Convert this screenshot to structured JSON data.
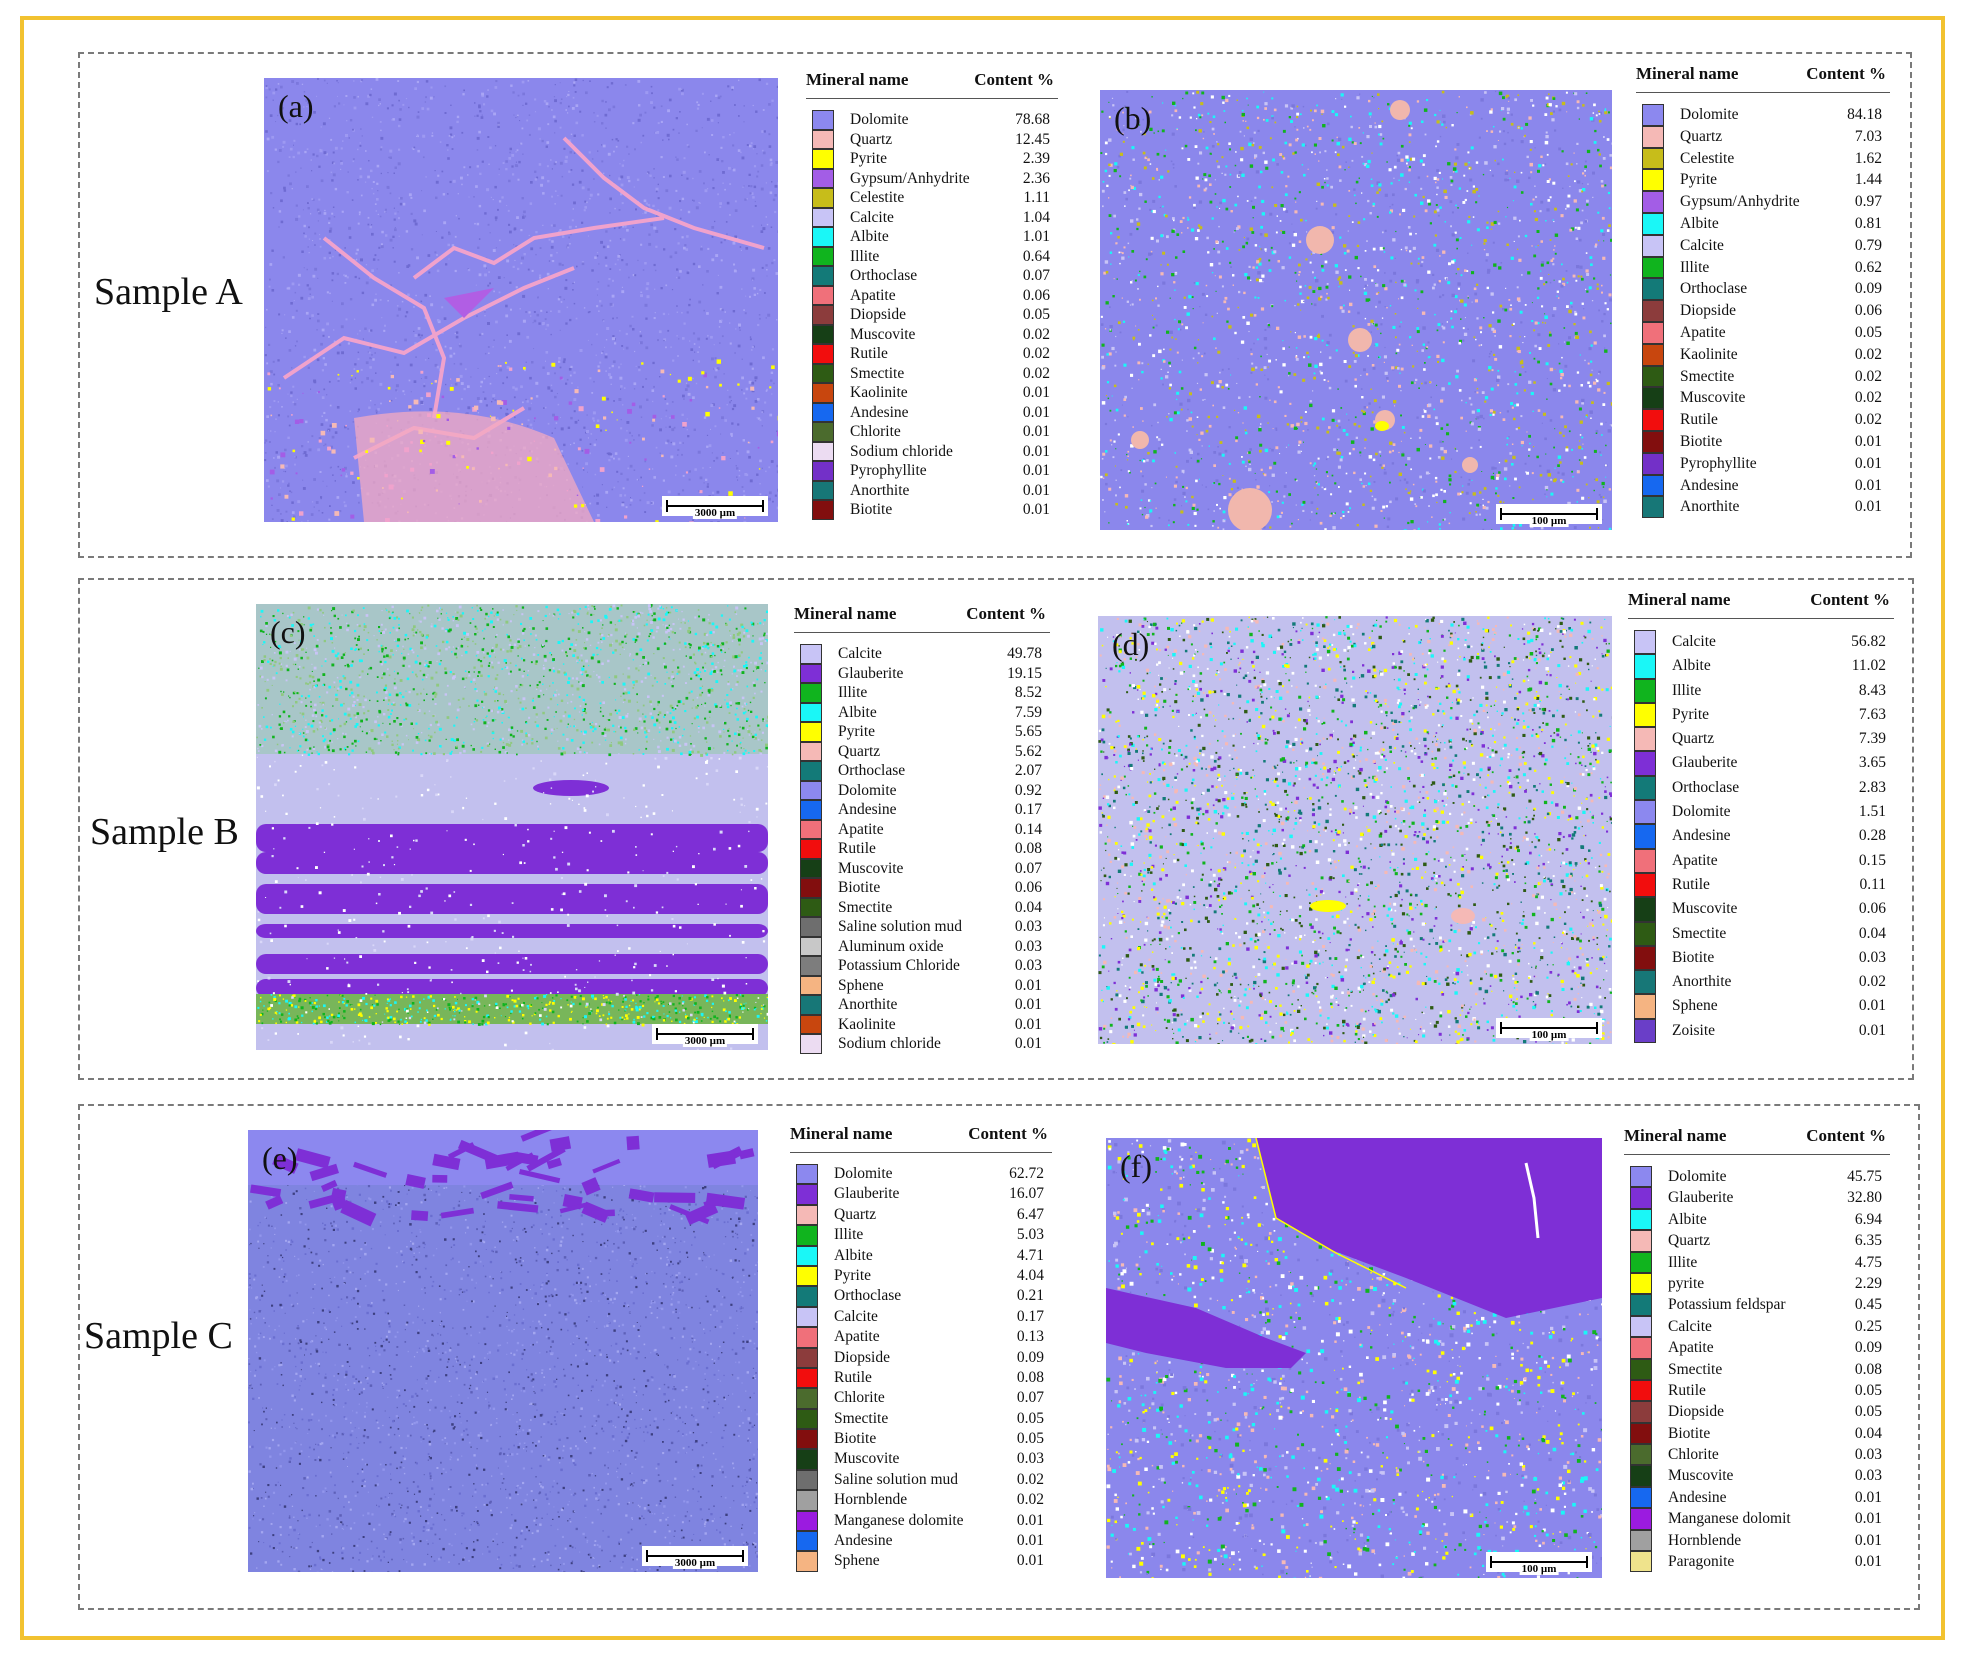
{
  "figure": {
    "border_color": "#f2c230",
    "panels": [
      {
        "letter": "(a)",
        "sample": "Sample A",
        "scale": "3000 µm",
        "style": "A1",
        "base": "#8b87ec",
        "header": {
          "name": "Mineral name",
          "content": "Content %"
        },
        "minerals": [
          {
            "name": "Dolomite",
            "value": "78.68",
            "color": "#8c88ef"
          },
          {
            "name": "Quartz",
            "value": "12.45",
            "color": "#f5b9b6"
          },
          {
            "name": "Pyrite",
            "value": "2.39",
            "color": "#ffff00"
          },
          {
            "name": "Gypsum/Anhydrite",
            "value": "2.36",
            "color": "#a35de6"
          },
          {
            "name": "Celestite",
            "value": "1.11",
            "color": "#c7bd1a"
          },
          {
            "name": "Calcite",
            "value": "1.04",
            "color": "#c8c4f6"
          },
          {
            "name": "Albite",
            "value": "1.01",
            "color": "#1af7f7"
          },
          {
            "name": "Illite",
            "value": "0.64",
            "color": "#10b41e"
          },
          {
            "name": "Orthoclase",
            "value": "0.07",
            "color": "#137a78"
          },
          {
            "name": "Apatite",
            "value": "0.06",
            "color": "#f0707a"
          },
          {
            "name": "Diopside",
            "value": "0.05",
            "color": "#8c3c3c"
          },
          {
            "name": "Muscovite",
            "value": "0.02",
            "color": "#163f16"
          },
          {
            "name": "Rutile",
            "value": "0.02",
            "color": "#f20d0d"
          },
          {
            "name": "Smectite",
            "value": "0.02",
            "color": "#2e5b14"
          },
          {
            "name": "Kaolinite",
            "value": "0.01",
            "color": "#c8460e"
          },
          {
            "name": "Andesine",
            "value": "0.01",
            "color": "#1668f0"
          },
          {
            "name": "Chlorite",
            "value": "0.01",
            "color": "#4b6b2d"
          },
          {
            "name": "Sodium chloride",
            "value": "0.01",
            "color": "#ecdcf2"
          },
          {
            "name": "Pyrophyllite",
            "value": "0.01",
            "color": "#7330c8"
          },
          {
            "name": "Anorthite",
            "value": "0.01",
            "color": "#177777"
          },
          {
            "name": "Biotite",
            "value": "0.01",
            "color": "#820e0e"
          }
        ]
      },
      {
        "letter": "(b)",
        "sample": "",
        "scale": "100 µm",
        "style": "A2",
        "base": "#8b87ec",
        "header": {
          "name": "Mineral name",
          "content": "Content %"
        },
        "minerals": [
          {
            "name": "Dolomite",
            "value": "84.18",
            "color": "#8c88ef"
          },
          {
            "name": "Quartz",
            "value": "7.03",
            "color": "#f5b9b6"
          },
          {
            "name": "Celestite",
            "value": "1.62",
            "color": "#c7bd1a"
          },
          {
            "name": "Pyrite",
            "value": "1.44",
            "color": "#ffff00"
          },
          {
            "name": "Gypsum/Anhydrite",
            "value": "0.97",
            "color": "#a35de6"
          },
          {
            "name": "Albite",
            "value": "0.81",
            "color": "#1af7f7"
          },
          {
            "name": "Calcite",
            "value": "0.79",
            "color": "#c8c4f6"
          },
          {
            "name": "Illite",
            "value": "0.62",
            "color": "#10b41e"
          },
          {
            "name": "Orthoclase",
            "value": "0.09",
            "color": "#137a78"
          },
          {
            "name": "Diopside",
            "value": "0.06",
            "color": "#8c3c3c"
          },
          {
            "name": "Apatite",
            "value": "0.05",
            "color": "#f0707a"
          },
          {
            "name": "Kaolinite",
            "value": "0.02",
            "color": "#c8460e"
          },
          {
            "name": "Smectite",
            "value": "0.02",
            "color": "#2e5b14"
          },
          {
            "name": "Muscovite",
            "value": "0.02",
            "color": "#163f16"
          },
          {
            "name": "Rutile",
            "value": "0.02",
            "color": "#f20d0d"
          },
          {
            "name": "Biotite",
            "value": "0.01",
            "color": "#820e0e"
          },
          {
            "name": "Pyrophyllite",
            "value": "0.01",
            "color": "#7330c8"
          },
          {
            "name": "Andesine",
            "value": "0.01",
            "color": "#1668f0"
          },
          {
            "name": "Anorthite",
            "value": "0.01",
            "color": "#177777"
          }
        ]
      },
      {
        "letter": "(c)",
        "sample": "Sample B",
        "scale": "3000 µm",
        "style": "B1",
        "base": "#c2c0ee",
        "header": {
          "name": "Mineral name",
          "content": "Content %"
        },
        "minerals": [
          {
            "name": "Calcite",
            "value": "49.78",
            "color": "#c8c4f6"
          },
          {
            "name": "Glauberite",
            "value": "19.15",
            "color": "#7e2fd6"
          },
          {
            "name": "Illite",
            "value": "8.52",
            "color": "#10b41e"
          },
          {
            "name": "Albite",
            "value": "7.59",
            "color": "#1af7f7"
          },
          {
            "name": "Pyrite",
            "value": "5.65",
            "color": "#ffff00"
          },
          {
            "name": "Quartz",
            "value": "5.62",
            "color": "#f5b9b6"
          },
          {
            "name": "Orthoclase",
            "value": "2.07",
            "color": "#137a78"
          },
          {
            "name": "Dolomite",
            "value": "0.92",
            "color": "#8c88ef"
          },
          {
            "name": "Andesine",
            "value": "0.17",
            "color": "#1668f0"
          },
          {
            "name": "Apatite",
            "value": "0.14",
            "color": "#f0707a"
          },
          {
            "name": "Rutile",
            "value": "0.08",
            "color": "#f20d0d"
          },
          {
            "name": "Muscovite",
            "value": "0.07",
            "color": "#163f16"
          },
          {
            "name": "Biotite",
            "value": "0.06",
            "color": "#820e0e"
          },
          {
            "name": "Smectite",
            "value": "0.04",
            "color": "#2e5b14"
          },
          {
            "name": "Saline solution mud",
            "value": "0.03",
            "color": "#6e6e6e"
          },
          {
            "name": "Aluminum oxide",
            "value": "0.03",
            "color": "#c8c8c8"
          },
          {
            "name": "Potassium Chloride",
            "value": "0.03",
            "color": "#7d7d7d"
          },
          {
            "name": "Sphene",
            "value": "0.01",
            "color": "#f5b482"
          },
          {
            "name": "Anorthite",
            "value": "0.01",
            "color": "#177777"
          },
          {
            "name": "Kaolinite",
            "value": "0.01",
            "color": "#c8460e"
          },
          {
            "name": "Sodium chloride",
            "value": "0.01",
            "color": "#ecdcf2"
          }
        ]
      },
      {
        "letter": "(d)",
        "sample": "",
        "scale": "100 µm",
        "style": "B2",
        "base": "#c2c0ee",
        "header": {
          "name": "Mineral name",
          "content": "Content %"
        },
        "minerals": [
          {
            "name": "Calcite",
            "value": "56.82",
            "color": "#c8c4f6"
          },
          {
            "name": "Albite",
            "value": "11.02",
            "color": "#1af7f7"
          },
          {
            "name": "Illite",
            "value": "8.43",
            "color": "#10b41e"
          },
          {
            "name": "Pyrite",
            "value": "7.63",
            "color": "#ffff00"
          },
          {
            "name": "Quartz",
            "value": "7.39",
            "color": "#f5b9b6"
          },
          {
            "name": "Glauberite",
            "value": "3.65",
            "color": "#7e2fd6"
          },
          {
            "name": "Orthoclase",
            "value": "2.83",
            "color": "#137a78"
          },
          {
            "name": "Dolomite",
            "value": "1.51",
            "color": "#8c88ef"
          },
          {
            "name": "Andesine",
            "value": "0.28",
            "color": "#1668f0"
          },
          {
            "name": "Apatite",
            "value": "0.15",
            "color": "#f0707a"
          },
          {
            "name": "Rutile",
            "value": "0.11",
            "color": "#f20d0d"
          },
          {
            "name": "Muscovite",
            "value": "0.06",
            "color": "#163f16"
          },
          {
            "name": "Smectite",
            "value": "0.04",
            "color": "#2e5b14"
          },
          {
            "name": "Biotite",
            "value": "0.03",
            "color": "#820e0e"
          },
          {
            "name": "Anorthite",
            "value": "0.02",
            "color": "#177777"
          },
          {
            "name": "Sphene",
            "value": "0.01",
            "color": "#f5b482"
          },
          {
            "name": "Zoisite",
            "value": "0.01",
            "color": "#6a3ec8"
          }
        ]
      },
      {
        "letter": "(e)",
        "sample": "Sample C",
        "scale": "3000 µm",
        "style": "C1",
        "base": "#7f84e0",
        "header": {
          "name": "Mineral name",
          "content": "Content %"
        },
        "minerals": [
          {
            "name": "Dolomite",
            "value": "62.72",
            "color": "#8c88ef"
          },
          {
            "name": "Glauberite",
            "value": "16.07",
            "color": "#7e2fd6"
          },
          {
            "name": "Quartz",
            "value": "6.47",
            "color": "#f5b9b6"
          },
          {
            "name": "Illite",
            "value": "5.03",
            "color": "#10b41e"
          },
          {
            "name": "Albite",
            "value": "4.71",
            "color": "#1af7f7"
          },
          {
            "name": "Pyrite",
            "value": "4.04",
            "color": "#ffff00"
          },
          {
            "name": "Orthoclase",
            "value": "0.21",
            "color": "#137a78"
          },
          {
            "name": "Calcite",
            "value": "0.17",
            "color": "#c8c4f6"
          },
          {
            "name": "Apatite",
            "value": "0.13",
            "color": "#f0707a"
          },
          {
            "name": "Diopside",
            "value": "0.09",
            "color": "#8c3c3c"
          },
          {
            "name": "Rutile",
            "value": "0.08",
            "color": "#f20d0d"
          },
          {
            "name": "Chlorite",
            "value": "0.07",
            "color": "#4b6b2d"
          },
          {
            "name": "Smectite",
            "value": "0.05",
            "color": "#2e5b14"
          },
          {
            "name": "Biotite",
            "value": "0.05",
            "color": "#820e0e"
          },
          {
            "name": "Muscovite",
            "value": "0.03",
            "color": "#163f16"
          },
          {
            "name": "Saline solution mud",
            "value": "0.02",
            "color": "#6e6e6e"
          },
          {
            "name": "Hornblende",
            "value": "0.02",
            "color": "#a0a0a0"
          },
          {
            "name": "Manganese dolomite",
            "value": "0.01",
            "color": "#9b1be0"
          },
          {
            "name": "Andesine",
            "value": "0.01",
            "color": "#1668f0"
          },
          {
            "name": "Sphene",
            "value": "0.01",
            "color": "#f5b482"
          }
        ]
      },
      {
        "letter": "(f)",
        "sample": "",
        "scale": "100 µm",
        "style": "C2",
        "base": "#8b87ec",
        "header": {
          "name": "Mineral name",
          "content": "Content %"
        },
        "minerals": [
          {
            "name": "Dolomite",
            "value": "45.75",
            "color": "#8c88ef"
          },
          {
            "name": "Glauberite",
            "value": "32.80",
            "color": "#7e2fd6"
          },
          {
            "name": "Albite",
            "value": "6.94",
            "color": "#1af7f7"
          },
          {
            "name": "Quartz",
            "value": "6.35",
            "color": "#f5b9b6"
          },
          {
            "name": "Illite",
            "value": "4.75",
            "color": "#10b41e"
          },
          {
            "name": "pyrite",
            "value": "2.29",
            "color": "#ffff00"
          },
          {
            "name": "Potassium feldspar",
            "value": "0.45",
            "color": "#137a78"
          },
          {
            "name": "Calcite",
            "value": "0.25",
            "color": "#c8c4f6"
          },
          {
            "name": "Apatite",
            "value": "0.09",
            "color": "#f0707a"
          },
          {
            "name": "Smectite",
            "value": "0.08",
            "color": "#2e5b14"
          },
          {
            "name": "Rutile",
            "value": "0.05",
            "color": "#f20d0d"
          },
          {
            "name": "Diopside",
            "value": "0.05",
            "color": "#8c3c3c"
          },
          {
            "name": "Biotite",
            "value": "0.04",
            "color": "#820e0e"
          },
          {
            "name": "Chlorite",
            "value": "0.03",
            "color": "#4b6b2d"
          },
          {
            "name": "Muscovite",
            "value": "0.03",
            "color": "#163f16"
          },
          {
            "name": "Andesine",
            "value": "0.01",
            "color": "#1668f0"
          },
          {
            "name": "Manganese dolomit",
            "value": "0.01",
            "color": "#9b1be0"
          },
          {
            "name": "Hornblende",
            "value": "0.01",
            "color": "#a0a0a0"
          },
          {
            "name": "Paragonite",
            "value": "0.01",
            "color": "#efe38c"
          }
        ]
      }
    ]
  }
}
